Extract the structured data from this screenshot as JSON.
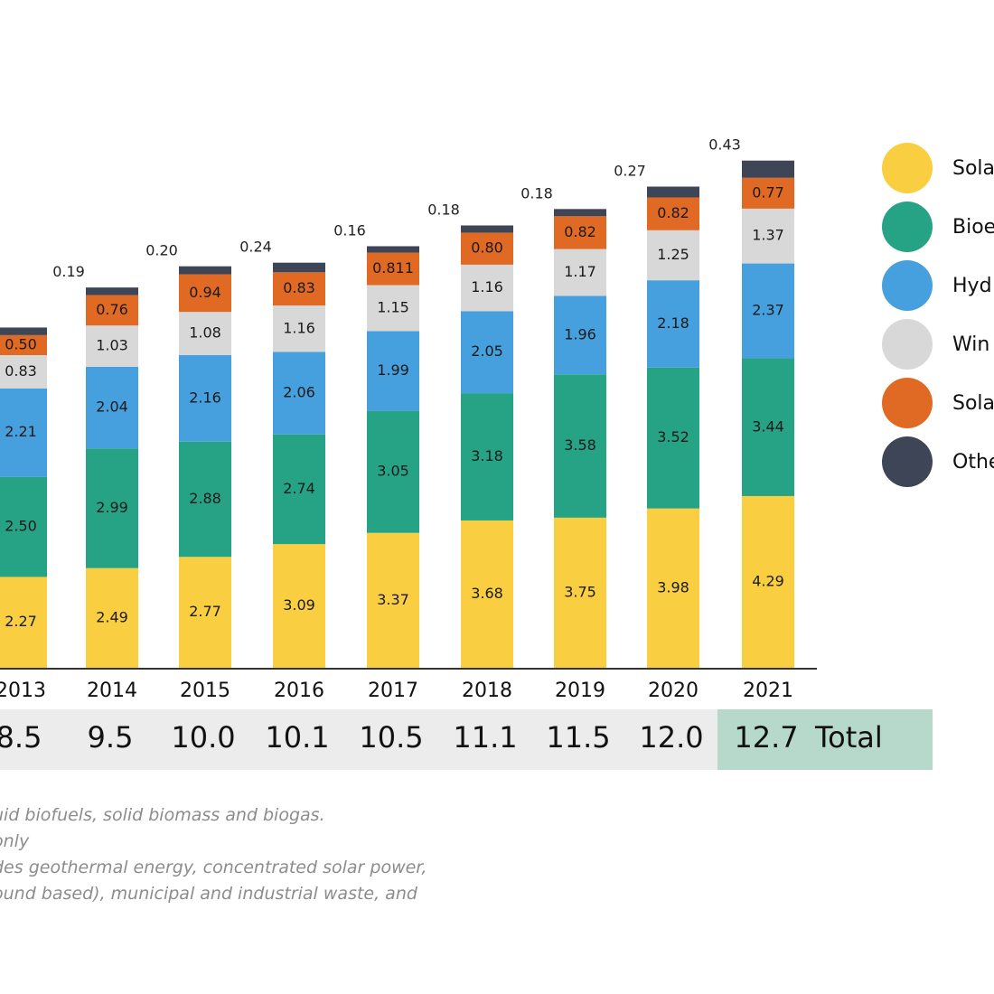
{
  "chart_data": {
    "type": "bar",
    "stacked": true,
    "categories": [
      "2013",
      "2014",
      "2015",
      "2016",
      "2017",
      "2018",
      "2019",
      "2020",
      "2021"
    ],
    "series": [
      {
        "name": "Sola",
        "color": "#f9cf41",
        "values": [
          2.27,
          2.49,
          2.77,
          3.09,
          3.37,
          3.68,
          3.75,
          3.98,
          4.29
        ],
        "labels": [
          "2.27",
          "2.49",
          "2.77",
          "3.09",
          "3.37",
          "3.68",
          "3.75",
          "3.98",
          "4.29"
        ]
      },
      {
        "name": "Bioe",
        "color": "#26a385",
        "values": [
          2.5,
          2.99,
          2.88,
          2.74,
          3.05,
          3.18,
          3.58,
          3.52,
          3.44
        ],
        "labels": [
          "2.50",
          "2.99",
          "2.88",
          "2.74",
          "3.05",
          "3.18",
          "3.58",
          "3.52",
          "3.44"
        ]
      },
      {
        "name": "Hyd",
        "color": "#46a0dd",
        "values": [
          2.21,
          2.04,
          2.16,
          2.06,
          1.99,
          2.05,
          1.96,
          2.18,
          2.37
        ],
        "labels": [
          "2.21",
          "2.04",
          "2.16",
          "2.06",
          "1.99",
          "2.05",
          "1.96",
          "2.18",
          "2.37"
        ]
      },
      {
        "name": "Win",
        "color": "#d8d8d8",
        "values": [
          0.83,
          1.03,
          1.08,
          1.16,
          1.15,
          1.16,
          1.17,
          1.25,
          1.37
        ],
        "labels": [
          "0.83",
          "1.03",
          "1.08",
          "1.16",
          "1.15",
          "1.16",
          "1.17",
          "1.25",
          "1.37"
        ]
      },
      {
        "name": "Sola",
        "color": "#e06a24",
        "values": [
          0.5,
          0.76,
          0.94,
          0.83,
          0.811,
          0.8,
          0.82,
          0.82,
          0.77
        ],
        "labels": [
          "0.50",
          "0.76",
          "0.94",
          "0.83",
          "0.811",
          "0.80",
          "0.82",
          "0.82",
          "0.77"
        ]
      },
      {
        "name": "Othe",
        "color": "#3d4556",
        "values": [
          0.19,
          0.19,
          0.2,
          0.24,
          0.16,
          0.18,
          0.18,
          0.27,
          0.43
        ],
        "labels": [
          "",
          "0.19",
          "0.20",
          "0.24",
          "0.16",
          "0.18",
          "0.18",
          "0.27",
          "0.43"
        ]
      }
    ],
    "totals": [
      "8.5",
      "9.5",
      "10.0",
      "10.1",
      "10.5",
      "11.1",
      "11.5",
      "12.0",
      "12.7"
    ],
    "totals_label": "Total",
    "title": "",
    "xlabel": "",
    "ylabel": "",
    "ylim": [
      0,
      14
    ],
    "grid": false,
    "legend_position": "right"
  },
  "notes": [
    "uid biofuels, solid biomass and biogas.",
    "only",
    "des geothermal energy, concentrated solar power,",
    "ound based), municipal and industrial waste, and"
  ]
}
